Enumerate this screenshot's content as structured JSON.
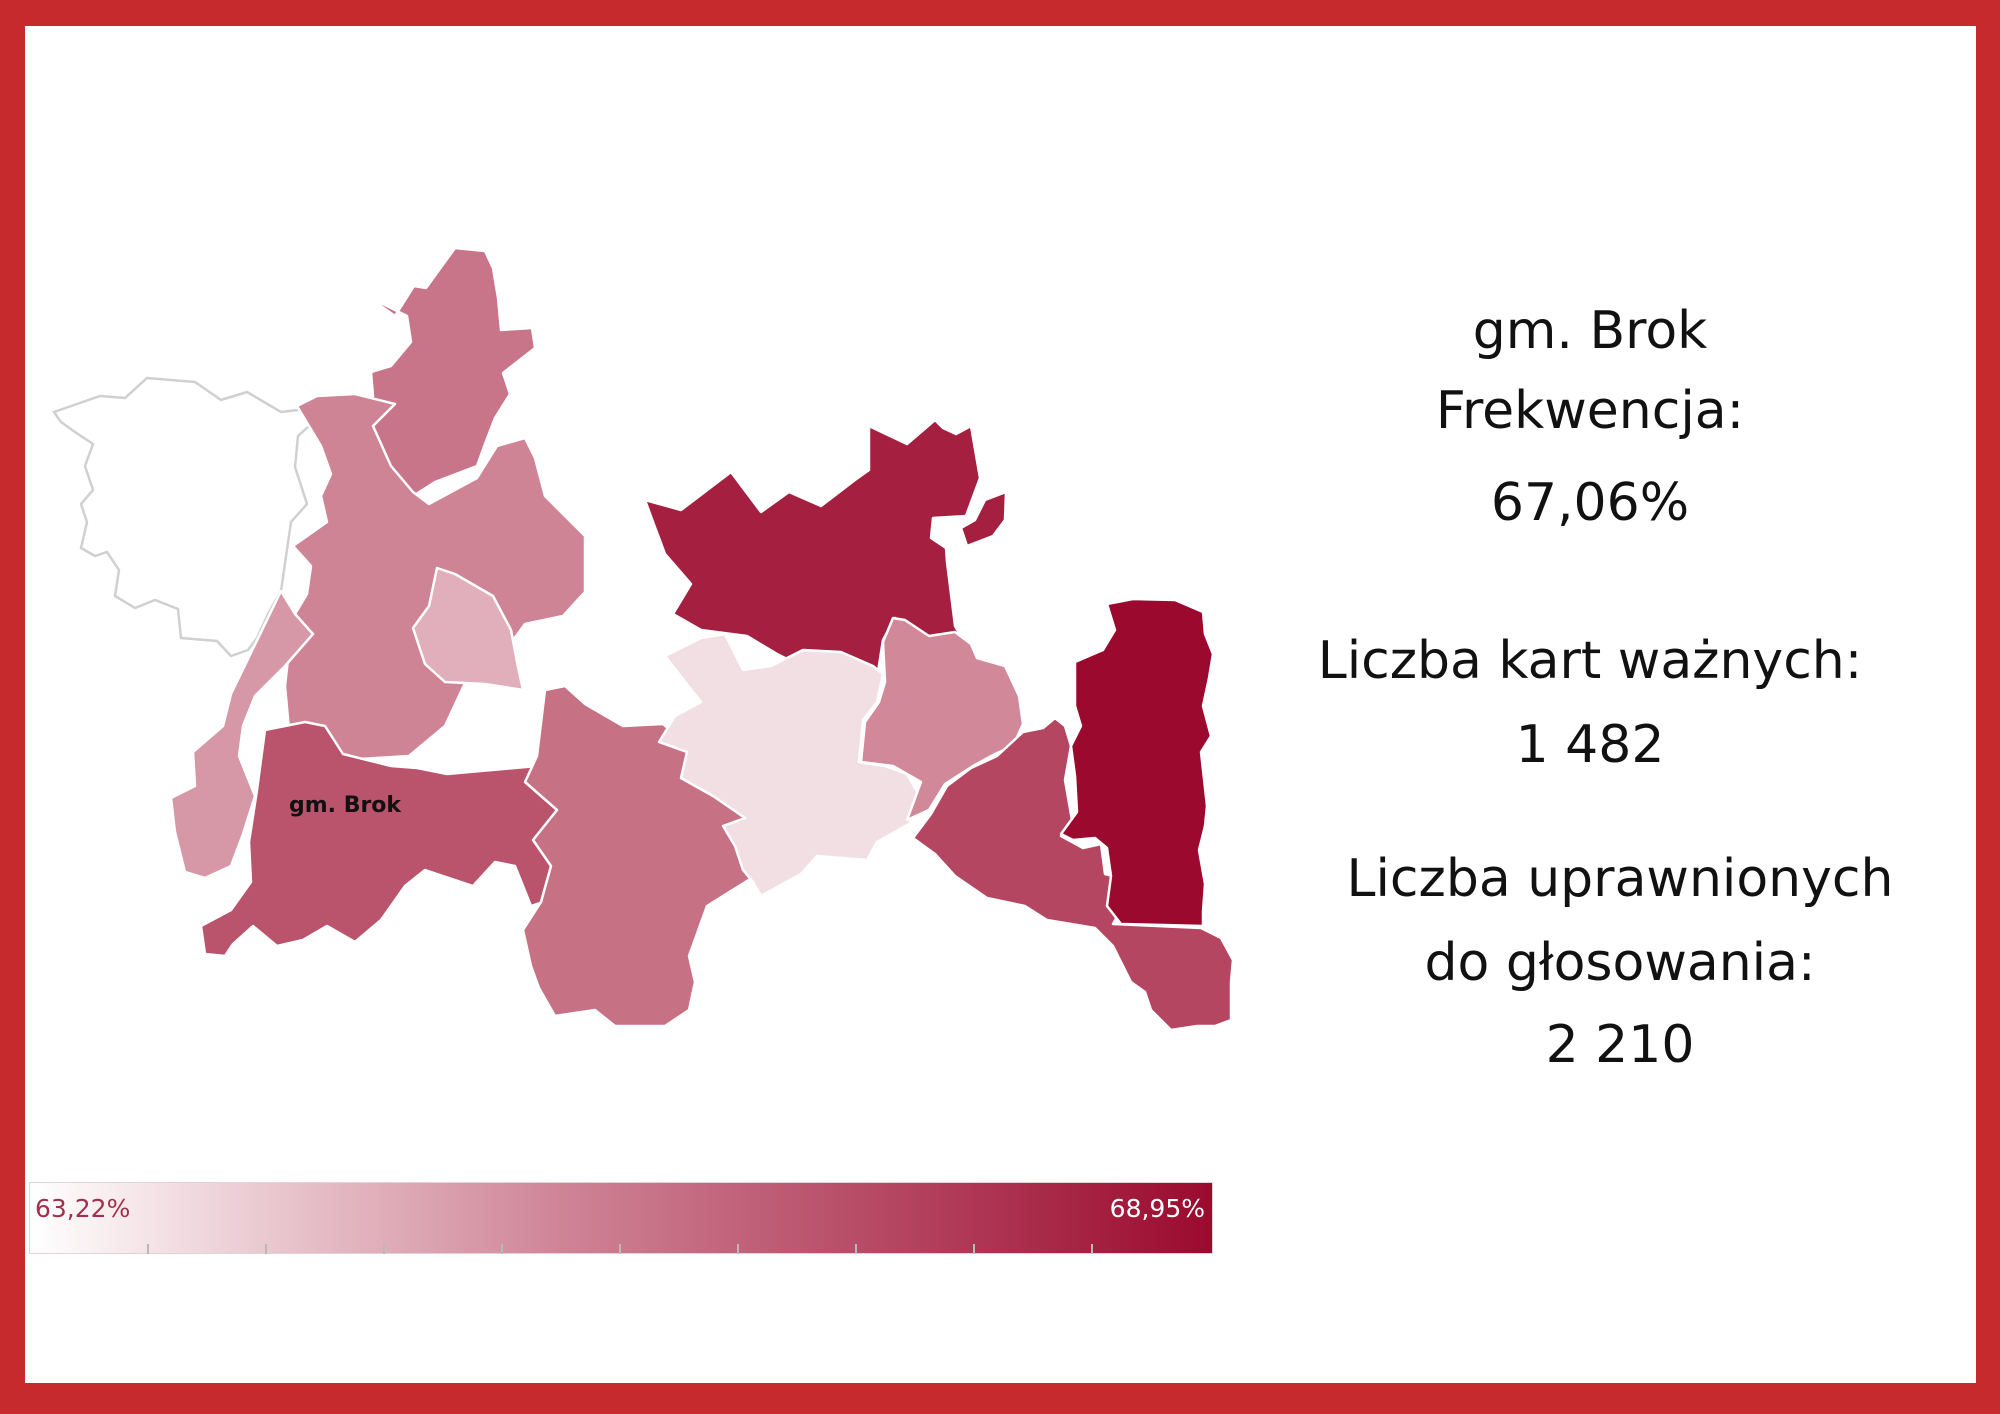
{
  "colors": {
    "frame": "#c62a2c",
    "scale_min": "#ffffff",
    "scale_max": "#9b0a2e"
  },
  "map": {
    "highlighted_label": "gm. Brok",
    "regions": [
      {
        "id": "outside",
        "value": null
      },
      {
        "id": "north-central",
        "value": 66.2
      },
      {
        "id": "west-central",
        "value": 65.8
      },
      {
        "id": "central-light",
        "value": 64.9
      },
      {
        "id": "west-edge",
        "value": 65.4
      },
      {
        "id": "brok",
        "value": 67.06
      },
      {
        "id": "south-central",
        "value": 66.3
      },
      {
        "id": "north-east-dark",
        "value": 68.4
      },
      {
        "id": "central-lightest",
        "value": 63.9
      },
      {
        "id": "east-mid",
        "value": 65.7
      },
      {
        "id": "south-east",
        "value": 67.4
      },
      {
        "id": "far-east-dark",
        "value": 68.95
      }
    ]
  },
  "info": {
    "name": "gm. Brok",
    "turnout_label": "Frekwencja:",
    "turnout_value": "67,06%",
    "valid_cards_label": "Liczba kart ważnych:",
    "valid_cards_value": "1 482",
    "eligible_label_line1": "Liczba uprawnionych",
    "eligible_label_line2": "do głosowania:",
    "eligible_value": "2 210"
  },
  "legend": {
    "min_label": "63,22%",
    "max_label": "68,95%",
    "min_value": 63.22,
    "max_value": 68.95
  }
}
